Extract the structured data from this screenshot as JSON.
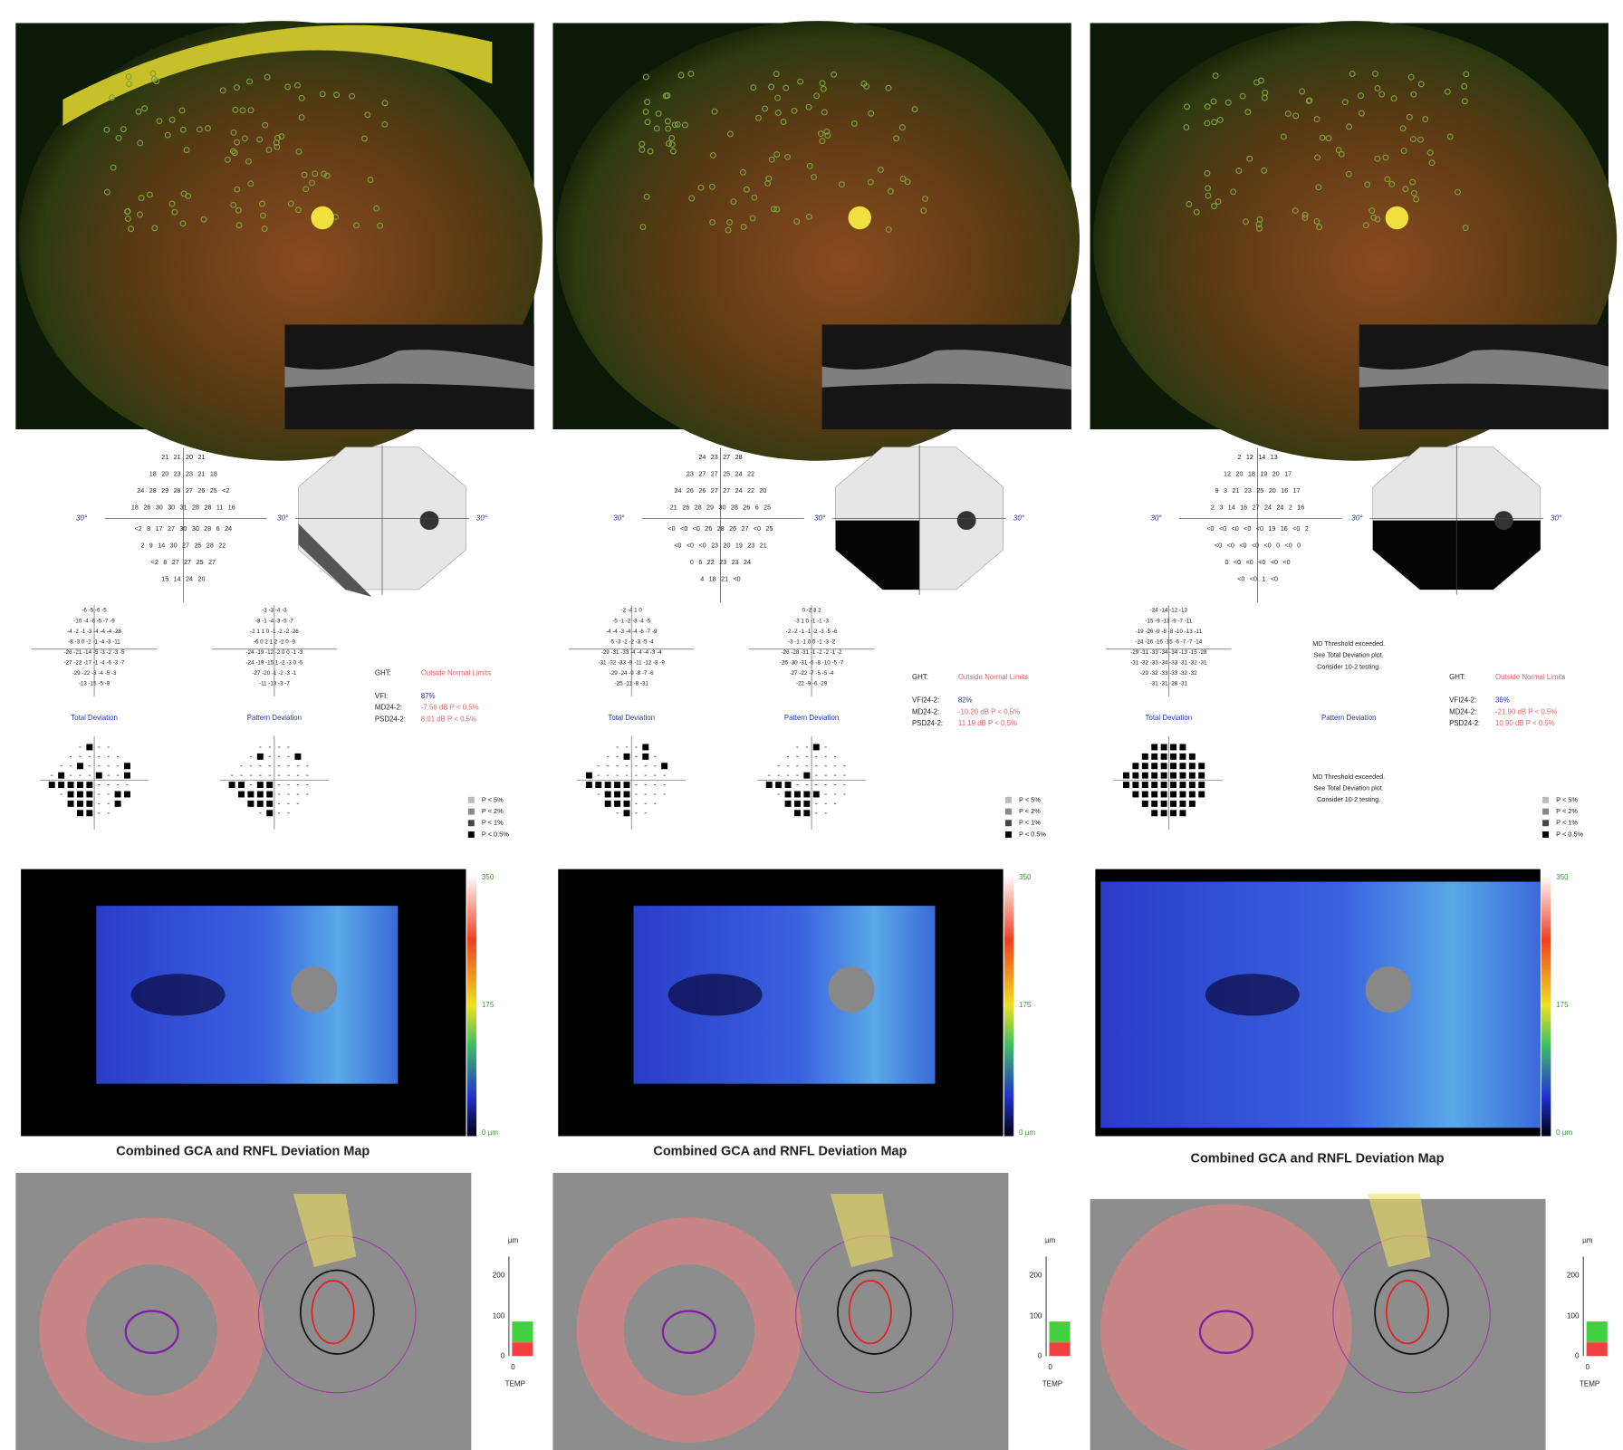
{
  "panels": [
    {
      "threshold_rows": [
        "21 21 20 21",
        "18 20 23 23 21 18",
        "24 28 29 28 27 26 25 <2",
        "18 26 30 30 31 28 28 11 16",
        "<2 8 17 27 30 30 28 6 24",
        "2 9 14 30 27 25 28 22",
        "<2 8 27 27 25 27",
        "15 14 24 20"
      ],
      "axis_label": "30°",
      "total_deviation_rows": [
        "-6 -5 -6 -5",
        "-10 -4 -6 -5 -7 -9",
        "-4 -2 -1 -3 -4 -4 -4 -28",
        "-8 -3 0 -2 -1 -4 -3 -11",
        "-26 -21 -14 -5 -3 -2 -3 -5",
        "-27 -22 -17 -1 -4 -6 -3 -7",
        "-29 -22 -3 -4 -5 -3",
        "-13 -15 -5 -9"
      ],
      "pattern_deviation_rows": [
        "-3 -3 -4 -3",
        "-8 -1 -4 -3 -5 -7",
        "-2 1 1 0 -1 -2 -2 -26",
        "-6 0 2 1 2 -2 0 -9",
        "-24 -19 -12 -2 0 0 -1 -3",
        "-24 -19 -15 1 -2 -3 0 -5",
        "-27 -20 -1 -2 -3 -1",
        "-11 -13 -3 -7"
      ],
      "total_deviation_title": "Total Deviation",
      "pattern_deviation_title": "Pattern Deviation",
      "ght_label": "GHT:",
      "ght": "Outside Normal Limits",
      "vfi_label": "VFI:",
      "vfi": "87%",
      "md_label": "MD24-2:",
      "md": "-7.56 dB P < 0.5%",
      "psd_label": "PSD24-2:",
      "psd": "8.01 dB P < 0.5%",
      "map_title": "Combined GCA and RNFL Deviation Map",
      "map_scale": [
        "350",
        "175",
        "0 µm"
      ],
      "thickness_unit": "µm",
      "thickness_ticks": [
        "200",
        "100",
        "0"
      ],
      "sector_value": "0",
      "sector_label": "TEMP"
    },
    {
      "threshold_rows": [
        "24 23 27 28",
        "23 27 27 25 24 22",
        "24 26 26 27 27 24 22 20",
        "21 26 28 29 30 28 26 6 25",
        "<0 <0 <0 26 28 26 27 <0 25",
        "<0 <0 <0 23 20 19 23 21",
        "0 6 22 23 23 24",
        "4 18 21 <0"
      ],
      "axis_label": "30°",
      "total_deviation_rows": [
        "-2 -4 1 0",
        "-5 -1 -2 -3 -4 -5",
        "-4 -4 -3 -4 -4 -6 -7 -9",
        "-5 -3 -2 -2 -3 -5 -4",
        "-29 -31 -33 -4 -4 -4 -3 -4",
        "-31 -32 -33 -9 -11 -12 -8 -9",
        "-29 -24 -9 -8 -7 -6",
        "-25 -11 -8 -31"
      ],
      "pattern_deviation_rows": [
        "0 -2 3 2",
        "-3 1 0 -1 -1 -3",
        "-2 -2 -1 -1 -2 -3 -5 -6",
        "-3 -1 -1 0 0 -1 -3 -2",
        "-26 -28 -31 -1 -2 -2 -1 -2",
        "-26 -30 -31 -6 -8 -10 -5 -7",
        "-27 -22 -7 -5 -5 -4",
        "-22 -9 -6 -29"
      ],
      "total_deviation_title": "Total Deviation",
      "pattern_deviation_title": "Pattern Deviation",
      "ght_label": "GHT:",
      "ght": "Outside Normal Limits",
      "vfi_label": "VFI24-2:",
      "vfi": "82%",
      "md_label": "MD24-2:",
      "md": "-10.20 dB P < 0.5%",
      "psd_label": "PSD24-2:",
      "psd": "11.19 dB P < 0.5%",
      "map_title": "Combined GCA and RNFL Deviation Map",
      "map_scale": [
        "350",
        "175",
        "0 µm"
      ],
      "thickness_unit": "µm",
      "thickness_ticks": [
        "200",
        "100",
        "0"
      ],
      "sector_value": "0",
      "sector_label": "TEMP"
    },
    {
      "threshold_rows": [
        "2 12 14 13",
        "12 20 18 19 20 17",
        "9 3 21 23 25 20 16 17",
        "2 3 14 16 27 24 24 2 16",
        "<0 <0 <0 <0 <0 19 16 <0 2",
        "<0 <0 <0 <0 <0 0 <0 0",
        "0 <0 <0 <0 <0 <0",
        "<0 <0 1 <0"
      ],
      "axis_label": "30°",
      "total_deviation_rows": [
        "-24 -14 -12 -13",
        "-15 -9 -13 -9 -7 -11",
        "-19 -26 -9 -8 -8 -10 -13 -11",
        "-24 -26 -16 -15 -6 -7 -7 -14",
        "-29 -31 -33 -34 -34 -13 -15 -28",
        "-31 -32 -33 -34 -33 -31 -32 -31",
        "-29 -32 -33 -33 -32 -32",
        "-31 -31 -28 -31"
      ],
      "pattern_note": [
        "MD Threshold exceeded.",
        "See Total Deviation plot.",
        "Consider 10-2 testing."
      ],
      "total_deviation_title": "Total Deviation",
      "pattern_deviation_title": "Pattern Deviation",
      "ght_label": "GHT:",
      "ght": "Outside Normal Limits",
      "vfi_label": "VFI24-2:",
      "vfi": "36%",
      "md_label": "MD24-2:",
      "md": "-21.90 dB P < 0.5%",
      "psd_label": "PSD24-2:",
      "psd": "10.90 dB P < 0.5%",
      "map_title": "Combined GCA and RNFL Deviation Map",
      "map_scale": [
        "350",
        "175",
        "0 µm"
      ],
      "thickness_unit": "µm",
      "thickness_ticks": [
        "200",
        "100",
        "0"
      ],
      "sector_value": "0",
      "sector_label": "TEMP"
    }
  ],
  "significance_legend": [
    "P < 5%",
    "P < 2%",
    "P < 1%",
    "P < 0.5%"
  ]
}
